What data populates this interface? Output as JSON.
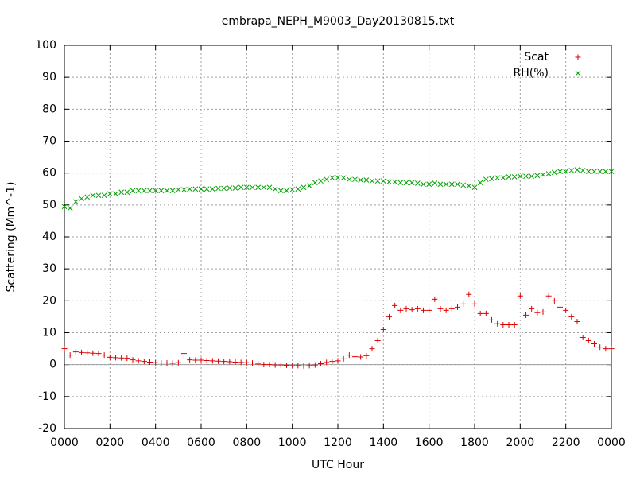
{
  "chart_data": {
    "type": "scatter",
    "title": "embrapa_NEPH_M9003_Day20130815.txt",
    "xlabel": "UTC Hour",
    "ylabel": "Scattering (Mm^-1)",
    "x": [
      0,
      0.25,
      0.5,
      0.75,
      1,
      1.25,
      1.5,
      1.75,
      2,
      2.25,
      2.5,
      2.75,
      3,
      3.25,
      3.5,
      3.75,
      4,
      4.25,
      4.5,
      4.75,
      5,
      5.25,
      5.5,
      5.75,
      6,
      6.25,
      6.5,
      6.75,
      7,
      7.25,
      7.5,
      7.75,
      8,
      8.25,
      8.5,
      8.75,
      9,
      9.25,
      9.5,
      9.75,
      10,
      10.25,
      10.5,
      10.75,
      11,
      11.25,
      11.5,
      11.75,
      12,
      12.25,
      12.5,
      12.75,
      13,
      13.25,
      13.5,
      13.75,
      14,
      14.25,
      14.5,
      14.75,
      15,
      15.25,
      15.5,
      15.75,
      16,
      16.25,
      16.5,
      16.75,
      17,
      17.25,
      17.5,
      17.75,
      18,
      18.25,
      18.5,
      18.75,
      19,
      19.25,
      19.5,
      19.75,
      20,
      20.25,
      20.5,
      20.75,
      21,
      21.25,
      21.5,
      21.75,
      22,
      22.25,
      22.5,
      22.75,
      23,
      23.25,
      23.5,
      23.75,
      24
    ],
    "series": [
      {
        "name": "Scat",
        "color": "#dd0000",
        "marker": "plus",
        "values": [
          5,
          3,
          4,
          3.8,
          3.7,
          3.6,
          3.5,
          3,
          2.3,
          2.2,
          2.1,
          2,
          1.5,
          1.2,
          1,
          0.8,
          0.6,
          0.5,
          0.5,
          0.4,
          0.6,
          3.5,
          1.5,
          1.4,
          1.4,
          1.3,
          1.2,
          1.1,
          1,
          0.9,
          0.8,
          0.7,
          0.6,
          0.5,
          0.2,
          0,
          0,
          -0.1,
          -0.1,
          -0.2,
          -0.3,
          -0.3,
          -0.4,
          -0.3,
          -0.1,
          0.3,
          0.7,
          1,
          1.2,
          1.8,
          3,
          2.5,
          2.4,
          2.8,
          5,
          7.5,
          11,
          15,
          18.5,
          17,
          17.5,
          17.2,
          17.5,
          17,
          17,
          20.5,
          17.5,
          17,
          17.5,
          18,
          19,
          22,
          19,
          16,
          16,
          14,
          12.8,
          12.5,
          12.5,
          12.5,
          21.5,
          15.5,
          17.5,
          16.3,
          16.5,
          21.5,
          20,
          18,
          17,
          15,
          13.5,
          8.5,
          7.5,
          6.5,
          5.5,
          5,
          5
        ]
      },
      {
        "name": "RH(%)",
        "color": "#00a000",
        "marker": "cross",
        "values": [
          49.5,
          49,
          51,
          52,
          52.5,
          53,
          53,
          53,
          53.5,
          53.5,
          54,
          54,
          54.5,
          54.5,
          54.5,
          54.5,
          54.5,
          54.5,
          54.5,
          54.5,
          54.8,
          54.8,
          55,
          55,
          55,
          55,
          55,
          55.2,
          55.2,
          55.3,
          55.3,
          55.5,
          55.5,
          55.5,
          55.5,
          55.5,
          55.5,
          55,
          54.5,
          54.5,
          54.8,
          55,
          55.5,
          56,
          57,
          57.5,
          58,
          58.5,
          58.5,
          58.5,
          58,
          58,
          57.8,
          57.8,
          57.5,
          57.5,
          57.5,
          57.2,
          57.2,
          57,
          57,
          57,
          56.8,
          56.5,
          56.5,
          56.8,
          56.5,
          56.5,
          56.5,
          56.5,
          56.2,
          56,
          55.5,
          57,
          58,
          58.2,
          58.5,
          58.5,
          58.8,
          58.8,
          59,
          59,
          59,
          59.2,
          59.5,
          59.8,
          60.2,
          60.5,
          60.5,
          60.8,
          61,
          60.8,
          60.5,
          60.5,
          60.5,
          60.5,
          60.5
        ]
      }
    ],
    "xlim": [
      0,
      24
    ],
    "xticks": [
      {
        "value": 0,
        "label": "0000"
      },
      {
        "value": 2,
        "label": "0200"
      },
      {
        "value": 4,
        "label": "0400"
      },
      {
        "value": 6,
        "label": "0600"
      },
      {
        "value": 8,
        "label": "0800"
      },
      {
        "value": 10,
        "label": "1000"
      },
      {
        "value": 12,
        "label": "1200"
      },
      {
        "value": 14,
        "label": "1400"
      },
      {
        "value": 16,
        "label": "1600"
      },
      {
        "value": 18,
        "label": "1800"
      },
      {
        "value": 20,
        "label": "2000"
      },
      {
        "value": 22,
        "label": "2200"
      },
      {
        "value": 24,
        "label": "0000"
      }
    ],
    "ylim": [
      -20,
      100
    ],
    "yticks": [
      -20,
      -10,
      0,
      10,
      20,
      30,
      40,
      50,
      60,
      70,
      80,
      90,
      100
    ],
    "grid": true,
    "zeroaxis": true,
    "legend": "top-right"
  }
}
